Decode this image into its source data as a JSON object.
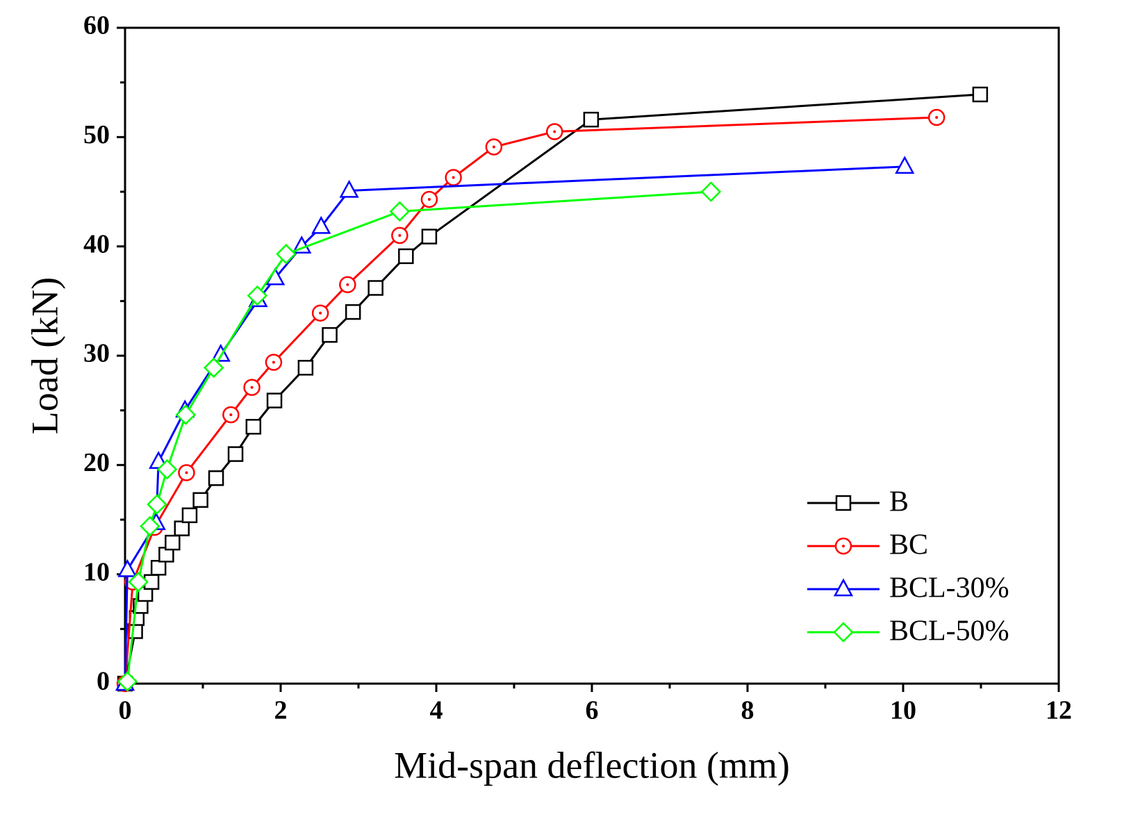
{
  "chart_data": {
    "type": "line",
    "x_label": "Mid-span deflection (mm)",
    "y_label": "Load (kN)",
    "xlim": [
      0,
      12
    ],
    "xticks": [
      0,
      2,
      4,
      6,
      8,
      10,
      12
    ],
    "ylim": [
      0,
      60
    ],
    "yticks": [
      0,
      10,
      20,
      30,
      40,
      50,
      60
    ],
    "legend": "lower right",
    "series": [
      {
        "name": "B",
        "color": "#000000",
        "marker": "square",
        "x": [
          0,
          0.13,
          0.15,
          0.2,
          0.26,
          0.34,
          0.43,
          0.53,
          0.61,
          0.73,
          0.83,
          0.97,
          1.17,
          1.42,
          1.65,
          1.92,
          2.32,
          2.63,
          2.93,
          3.22,
          3.61,
          3.91,
          5.99,
          10.99
        ],
        "values": [
          0,
          4.8,
          6.0,
          7.1,
          8.2,
          9.3,
          10.6,
          11.8,
          12.9,
          14.2,
          15.4,
          16.8,
          18.8,
          21.0,
          23.5,
          25.9,
          28.9,
          31.9,
          34.0,
          36.2,
          39.1,
          40.9,
          51.6,
          53.9
        ]
      },
      {
        "name": "BC",
        "color": "#ff0000",
        "marker": "circle",
        "x": [
          0,
          0.1,
          0.38,
          0.79,
          1.36,
          1.63,
          1.91,
          2.51,
          2.86,
          3.53,
          3.91,
          4.22,
          4.74,
          5.52,
          10.43
        ],
        "values": [
          0,
          9.3,
          14.3,
          19.3,
          24.6,
          27.1,
          29.4,
          33.9,
          36.5,
          41.0,
          44.3,
          46.3,
          49.1,
          50.5,
          51.8
        ]
      },
      {
        "name": "BCL-30%",
        "color": "#0000ff",
        "marker": "triangle",
        "x": [
          0,
          0.03,
          0.4,
          0.43,
          0.77,
          1.23,
          1.71,
          1.93,
          2.27,
          2.52,
          2.88,
          10.02
        ],
        "values": [
          0,
          10.4,
          14.7,
          20.3,
          25.0,
          30.1,
          35.1,
          37.1,
          40.0,
          41.8,
          45.1,
          47.3
        ]
      },
      {
        "name": "BCL-50%",
        "color": "#00ff00",
        "marker": "diamond",
        "x": [
          0.03,
          0.17,
          0.32,
          0.41,
          0.54,
          0.78,
          1.14,
          1.7,
          2.07,
          3.53,
          7.53
        ],
        "values": [
          0.2,
          9.3,
          14.4,
          16.4,
          19.6,
          24.6,
          28.9,
          35.5,
          39.3,
          43.2,
          45.0
        ]
      }
    ]
  }
}
